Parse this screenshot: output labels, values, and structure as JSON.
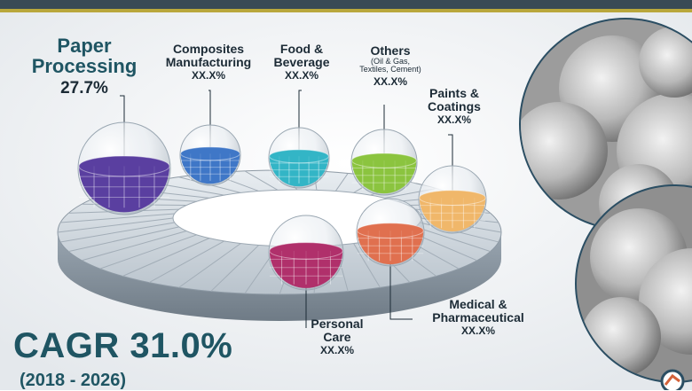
{
  "chart_data": {
    "type": "pie",
    "title": "",
    "segments": [
      {
        "name": "Paper Processing",
        "sub": "",
        "value_text": "27.7%",
        "value": 27.7,
        "color": "#5a3fa0"
      },
      {
        "name": "Composites Manufacturing",
        "sub": "",
        "value_text": "XX.X%",
        "value": null,
        "color": "#3f77c7"
      },
      {
        "name": "Food & Beverage",
        "sub": "",
        "value_text": "XX.X%",
        "value": null,
        "color": "#33b5c6"
      },
      {
        "name": "Others",
        "sub": "(Oil & Gas, Textiles, Cement)",
        "value_text": "XX.X%",
        "value": null,
        "color": "#8bc43f"
      },
      {
        "name": "Paints & Coatings",
        "sub": "",
        "value_text": "XX.X%",
        "value": null,
        "color": "#f0b76a"
      },
      {
        "name": "Medical & Pharmaceutical",
        "sub": "",
        "value_text": "XX.X%",
        "value": null,
        "color": "#e0704f"
      },
      {
        "name": "Personal Care",
        "sub": "",
        "value_text": "XX.X%",
        "value": null,
        "color": "#b0306b"
      }
    ]
  },
  "labels": {
    "paper_line1": "Paper",
    "paper_line2": "Processing",
    "paper_value": "27.7%",
    "composites_line1": "Composites",
    "composites_line2": "Manufacturing",
    "composites_value": "XX.X%",
    "food_line1": "Food &",
    "food_line2": "Beverage",
    "food_value": "XX.X%",
    "others_line1": "Others",
    "others_sub1": "(Oil & Gas,",
    "others_sub2": "Textiles, Cement)",
    "others_value": "XX.X%",
    "paints_line1": "Paints &",
    "paints_line2": "Coatings",
    "paints_value": "XX.X%",
    "medical_line1": "Medical &",
    "medical_line2": "Pharmaceutical",
    "medical_value": "XX.X%",
    "personal_line1": "Personal",
    "personal_line2": "Care",
    "personal_value": "XX.X%"
  },
  "cagr": {
    "text": "CAGR 31.0%",
    "years": "(2018 - 2026)"
  },
  "colors": {
    "title_teal": "#1f5563",
    "header_band": "#3a4a55",
    "header_line": "#b9a73c",
    "ring_top": "#cfd8df",
    "ring_side": "#8e9aa6"
  }
}
